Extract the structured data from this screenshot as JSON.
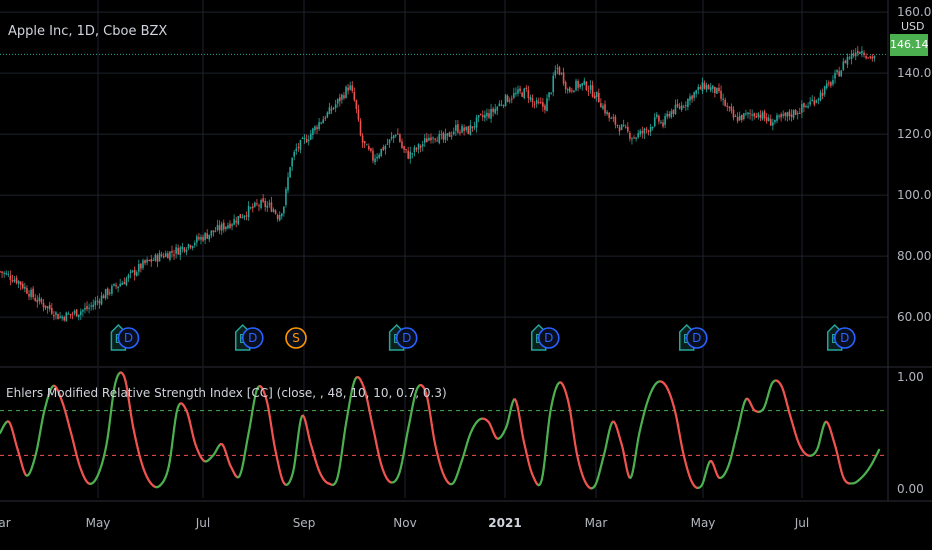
{
  "header": {
    "symbol_title": "Apple Inc, 1D, Cboe BZX",
    "currency": "USD",
    "last_price": "146.14"
  },
  "indicator": {
    "title": "Ehlers Modified Relative Strength Index [CC] (close, , 48, 10, 10, 0.7, 0.3)"
  },
  "colors": {
    "background": "#000000",
    "up": "#26a69a",
    "down": "#ef5350",
    "grid": "#1e222d",
    "rsi_up": "#4caf50",
    "rsi_down": "#ef5350",
    "upper_level": "#4caf50",
    "lower_level": "#ef5350",
    "earnings": "#26a69a",
    "dividend": "#2962ff",
    "split": "#ff9800"
  },
  "chart_data": [
    {
      "type": "candlestick",
      "title": "Apple Inc, 1D, Cboe BZX",
      "x_tick_labels": [
        "Mar",
        "May",
        "Jul",
        "Sep",
        "Nov",
        "2021",
        "Mar",
        "May",
        "Jul"
      ],
      "y_ticks": [
        60.0,
        80.0,
        100.0,
        120.0,
        140.0,
        160.0
      ],
      "ylim": [
        44,
        162
      ],
      "last_price": 146.14,
      "grid": true,
      "close_path_points": [
        [
          0,
          75
        ],
        [
          3,
          72
        ],
        [
          6,
          66
        ],
        [
          9,
          62
        ],
        [
          10,
          60
        ],
        [
          12,
          61
        ],
        [
          15,
          63
        ],
        [
          18,
          68
        ],
        [
          21,
          72
        ],
        [
          24,
          77
        ],
        [
          27,
          80
        ],
        [
          30,
          82
        ],
        [
          33,
          85
        ],
        [
          36,
          88
        ],
        [
          39,
          91
        ],
        [
          42,
          95
        ],
        [
          44,
          97
        ],
        [
          46,
          96
        ],
        [
          47,
          93
        ],
        [
          48,
          97
        ],
        [
          49,
          110
        ],
        [
          50,
          115
        ],
        [
          52,
          119
        ],
        [
          54,
          124
        ],
        [
          56,
          128
        ],
        [
          58,
          133
        ],
        [
          59,
          136
        ],
        [
          60,
          130
        ],
        [
          61,
          118
        ],
        [
          62,
          115
        ],
        [
          63,
          112
        ],
        [
          64,
          114
        ],
        [
          66,
          118
        ],
        [
          67,
          121
        ],
        [
          68,
          115
        ],
        [
          69,
          113
        ],
        [
          71,
          116
        ],
        [
          73,
          120
        ],
        [
          75,
          118
        ],
        [
          77,
          122
        ],
        [
          79,
          121
        ],
        [
          81,
          125
        ],
        [
          83,
          127
        ],
        [
          85,
          131
        ],
        [
          87,
          133
        ],
        [
          89,
          134
        ],
        [
          90,
          130
        ],
        [
          92,
          129
        ],
        [
          93,
          134
        ],
        [
          94,
          142
        ],
        [
          95,
          139
        ],
        [
          96,
          134
        ],
        [
          97,
          136
        ],
        [
          99,
          136
        ],
        [
          101,
          132
        ],
        [
          103,
          125
        ],
        [
          105,
          122
        ],
        [
          107,
          119
        ],
        [
          109,
          121
        ],
        [
          111,
          125
        ],
        [
          112,
          123
        ],
        [
          113,
          127
        ],
        [
          115,
          129
        ],
        [
          117,
          133
        ],
        [
          119,
          136
        ],
        [
          121,
          134
        ],
        [
          122,
          131
        ],
        [
          123,
          128
        ],
        [
          124,
          125
        ],
        [
          126,
          126
        ],
        [
          128,
          127
        ],
        [
          130,
          124
        ],
        [
          132,
          125
        ],
        [
          134,
          127
        ],
        [
          136,
          129
        ],
        [
          138,
          132
        ],
        [
          140,
          136
        ],
        [
          142,
          141
        ],
        [
          143,
          145
        ],
        [
          144,
          146
        ],
        [
          145,
          148
        ],
        [
          146,
          147
        ],
        [
          147,
          145
        ],
        [
          148,
          146
        ]
      ],
      "event_markers": [
        {
          "label": "E",
          "kind": "earnings",
          "x": 20
        },
        {
          "label": "D",
          "kind": "dividend",
          "x": 21.7
        },
        {
          "label": "E",
          "kind": "earnings",
          "x": 41
        },
        {
          "label": "D",
          "kind": "dividend",
          "x": 42.7
        },
        {
          "label": "S",
          "kind": "split",
          "x": 50
        },
        {
          "label": "E",
          "kind": "earnings",
          "x": 67
        },
        {
          "label": "D",
          "kind": "dividend",
          "x": 68.7
        },
        {
          "label": "E",
          "kind": "earnings",
          "x": 91
        },
        {
          "label": "D",
          "kind": "dividend",
          "x": 92.7
        },
        {
          "label": "E",
          "kind": "earnings",
          "x": 116
        },
        {
          "label": "D",
          "kind": "dividend",
          "x": 117.7
        },
        {
          "label": "E",
          "kind": "earnings",
          "x": 141
        },
        {
          "label": "D",
          "kind": "dividend",
          "x": 142.7
        }
      ]
    },
    {
      "type": "line",
      "title": "Ehlers Modified Relative Strength Index [CC] (close, , 48, 10, 10, 0.7, 0.3)",
      "y_ticks": [
        0.0,
        1.0
      ],
      "ylim": [
        -0.08,
        1.08
      ],
      "levels": [
        0.7,
        0.3
      ],
      "series": [
        {
          "points": [
            [
              0,
              0.5
            ],
            [
              1.5,
              0.6
            ],
            [
              3,
              0.35
            ],
            [
              4.5,
              0.12
            ],
            [
              6,
              0.3
            ],
            [
              7.5,
              0.7
            ],
            [
              9,
              0.92
            ],
            [
              10.5,
              0.78
            ],
            [
              12,
              0.5
            ],
            [
              13.5,
              0.2
            ],
            [
              15,
              0.05
            ],
            [
              16.5,
              0.12
            ],
            [
              18,
              0.4
            ],
            [
              19.5,
              0.95
            ],
            [
              21,
              1.0
            ],
            [
              22.5,
              0.55
            ],
            [
              24,
              0.22
            ],
            [
              25.5,
              0.05
            ],
            [
              27,
              0.03
            ],
            [
              28.5,
              0.2
            ],
            [
              30,
              0.72
            ],
            [
              31.5,
              0.7
            ],
            [
              33,
              0.4
            ],
            [
              34.5,
              0.25
            ],
            [
              36,
              0.3
            ],
            [
              37.5,
              0.4
            ],
            [
              39,
              0.2
            ],
            [
              40.5,
              0.12
            ],
            [
              42,
              0.5
            ],
            [
              43.5,
              0.9
            ],
            [
              45,
              0.8
            ],
            [
              46.5,
              0.35
            ],
            [
              48,
              0.05
            ],
            [
              49.5,
              0.15
            ],
            [
              51,
              0.65
            ],
            [
              52.5,
              0.4
            ],
            [
              54,
              0.15
            ],
            [
              55.5,
              0.05
            ],
            [
              57,
              0.1
            ],
            [
              58.5,
              0.6
            ],
            [
              60,
              0.98
            ],
            [
              61.5,
              0.9
            ],
            [
              63,
              0.55
            ],
            [
              64.5,
              0.2
            ],
            [
              66,
              0.06
            ],
            [
              67.5,
              0.15
            ],
            [
              69,
              0.55
            ],
            [
              70.5,
              0.9
            ],
            [
              72,
              0.85
            ],
            [
              73.5,
              0.4
            ],
            [
              75,
              0.12
            ],
            [
              76.5,
              0.05
            ],
            [
              78,
              0.25
            ],
            [
              79.5,
              0.5
            ],
            [
              81,
              0.62
            ],
            [
              82.5,
              0.6
            ],
            [
              84,
              0.45
            ],
            [
              85.5,
              0.55
            ],
            [
              87,
              0.8
            ],
            [
              88.5,
              0.42
            ],
            [
              90,
              0.12
            ],
            [
              91.5,
              0.08
            ],
            [
              93,
              0.7
            ],
            [
              94.5,
              0.95
            ],
            [
              96,
              0.78
            ],
            [
              97.5,
              0.3
            ],
            [
              99,
              0.05
            ],
            [
              100.5,
              0.03
            ],
            [
              102,
              0.3
            ],
            [
              103.5,
              0.6
            ],
            [
              105,
              0.4
            ],
            [
              106.5,
              0.1
            ],
            [
              108,
              0.5
            ],
            [
              109.5,
              0.8
            ],
            [
              111,
              0.95
            ],
            [
              112.5,
              0.92
            ],
            [
              114,
              0.7
            ],
            [
              115.5,
              0.3
            ],
            [
              117,
              0.05
            ],
            [
              118.5,
              0.03
            ],
            [
              120,
              0.25
            ],
            [
              121.5,
              0.1
            ],
            [
              123,
              0.2
            ],
            [
              124.5,
              0.5
            ],
            [
              126,
              0.8
            ],
            [
              127.5,
              0.7
            ],
            [
              129,
              0.72
            ],
            [
              130.5,
              0.95
            ],
            [
              132,
              0.92
            ],
            [
              133.5,
              0.65
            ],
            [
              135,
              0.4
            ],
            [
              136.5,
              0.3
            ],
            [
              138,
              0.35
            ],
            [
              139.5,
              0.6
            ],
            [
              141,
              0.4
            ],
            [
              142.5,
              0.1
            ],
            [
              144,
              0.05
            ],
            [
              145.5,
              0.1
            ],
            [
              147,
              0.2
            ],
            [
              148.5,
              0.35
            ]
          ]
        }
      ]
    }
  ]
}
